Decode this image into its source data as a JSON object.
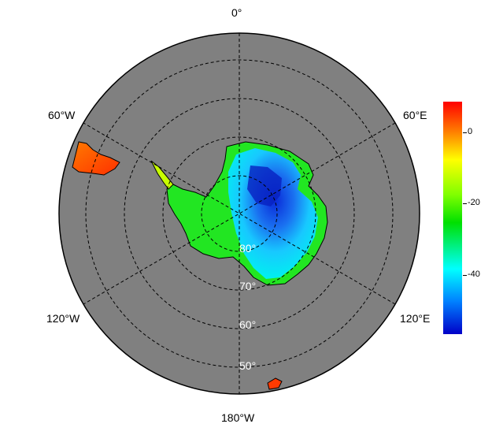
{
  "map": {
    "projection": "south-polar-stereographic",
    "background_color": "#808080",
    "meridian_labels": [
      "0°",
      "60°E",
      "120°E",
      "180°W",
      "120°W",
      "60°W"
    ],
    "latitude_labels": [
      "80°",
      "70°",
      "60°",
      "50°"
    ],
    "grid": "dashed"
  },
  "colorbar": {
    "tick_labels": [
      "0",
      "-20",
      "-40"
    ],
    "colors": [
      "#ff0000",
      "#ff7f00",
      "#ffff00",
      "#80ff00",
      "#00e000",
      "#00ffff",
      "#0080ff",
      "#0000c8"
    ]
  }
}
